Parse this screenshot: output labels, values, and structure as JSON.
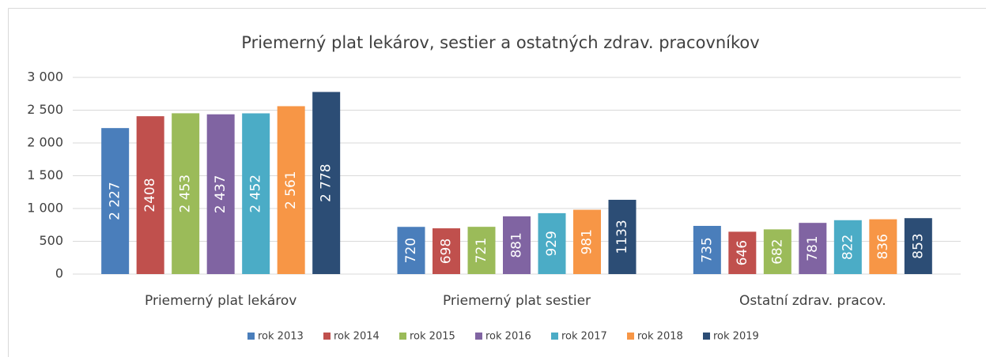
{
  "chart_data": {
    "type": "bar",
    "title": "Priemerný plat lekárov, sestier a ostatných zdrav. pracovníkov",
    "categories": [
      "Priemerný plat lekárov",
      "Priemerný plat sestier",
      "Ostatní zdrav. pracov."
    ],
    "series": [
      {
        "name": "rok 2013",
        "color": "#4a7ebb",
        "values": [
          2227,
          720,
          735
        ],
        "value_labels": [
          "2 227",
          "720",
          "735"
        ]
      },
      {
        "name": "rok 2014",
        "color": "#c0504d",
        "values": [
          2408,
          698,
          646
        ]
      },
      {
        "name": "rok 2015",
        "color": "#9bbb59",
        "values": [
          2453,
          721,
          682
        ],
        "value_labels": [
          "2 453",
          "721",
          "682"
        ]
      },
      {
        "name": "rok 2016",
        "color": "#8064a2",
        "values": [
          2437,
          881,
          781
        ],
        "value_labels": [
          "2 437",
          "881",
          "781"
        ]
      },
      {
        "name": "rok 2017",
        "color": "#4bacc6",
        "values": [
          2452,
          929,
          822
        ],
        "value_labels": [
          "2 452",
          "929",
          "822"
        ]
      },
      {
        "name": "rok 2018",
        "color": "#f79646",
        "values": [
          2561,
          981,
          836
        ],
        "value_labels": [
          "2 561",
          "981",
          "836"
        ]
      },
      {
        "name": "rok 2019",
        "color": "#2c4d75",
        "values": [
          2778,
          1133,
          853
        ],
        "value_labels": [
          "2 778",
          "1133",
          "853"
        ]
      }
    ],
    "ylim": [
      0,
      3000
    ],
    "yticks": [
      0,
      500,
      {
        "value": 1000,
        "label": "1 000"
      },
      {
        "value": 1500,
        "label": "1 500"
      },
      {
        "value": 2000,
        "label": "2 000"
      },
      {
        "value": 2500,
        "label": "2 500"
      },
      {
        "value": 3000,
        "label": "3 000"
      }
    ],
    "grid": true,
    "legend": "bottom"
  }
}
